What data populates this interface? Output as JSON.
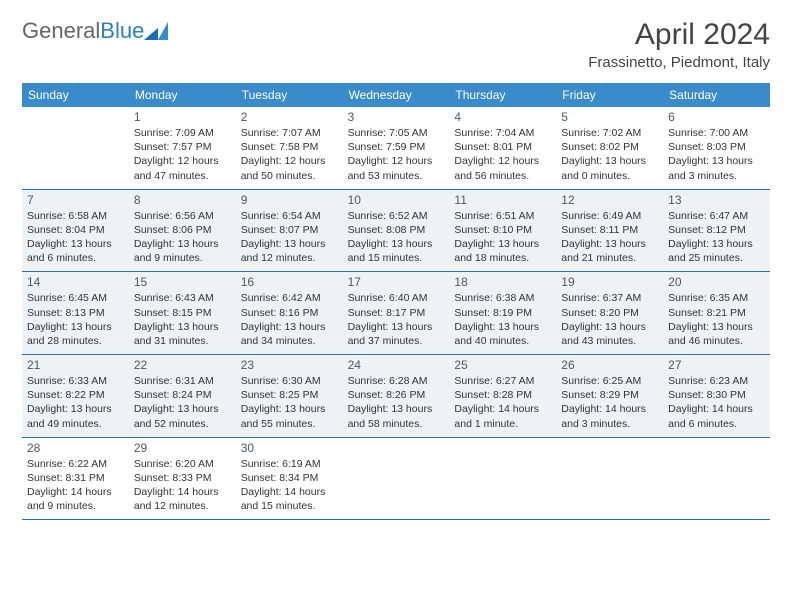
{
  "brand": {
    "name_gray": "General",
    "name_blue": "Blue"
  },
  "title": {
    "month": "April 2024",
    "location": "Frassinetto, Piedmont, Italy"
  },
  "colors": {
    "header_bg": "#3a8bc9",
    "header_text": "#ffffff",
    "rule": "#2d6da8",
    "shaded": "#eef2f5",
    "text": "#333333",
    "daynum": "#4a5a6a"
  },
  "dayNames": [
    "Sunday",
    "Monday",
    "Tuesday",
    "Wednesday",
    "Thursday",
    "Friday",
    "Saturday"
  ],
  "weeks": [
    {
      "shaded": false,
      "cells": [
        {
          "blank": true
        },
        {
          "day": "1",
          "sunrise": "Sunrise: 7:09 AM",
          "sunset": "Sunset: 7:57 PM",
          "daylight": "Daylight: 12 hours and 47 minutes."
        },
        {
          "day": "2",
          "sunrise": "Sunrise: 7:07 AM",
          "sunset": "Sunset: 7:58 PM",
          "daylight": "Daylight: 12 hours and 50 minutes."
        },
        {
          "day": "3",
          "sunrise": "Sunrise: 7:05 AM",
          "sunset": "Sunset: 7:59 PM",
          "daylight": "Daylight: 12 hours and 53 minutes."
        },
        {
          "day": "4",
          "sunrise": "Sunrise: 7:04 AM",
          "sunset": "Sunset: 8:01 PM",
          "daylight": "Daylight: 12 hours and 56 minutes."
        },
        {
          "day": "5",
          "sunrise": "Sunrise: 7:02 AM",
          "sunset": "Sunset: 8:02 PM",
          "daylight": "Daylight: 13 hours and 0 minutes."
        },
        {
          "day": "6",
          "sunrise": "Sunrise: 7:00 AM",
          "sunset": "Sunset: 8:03 PM",
          "daylight": "Daylight: 13 hours and 3 minutes."
        }
      ]
    },
    {
      "shaded": true,
      "cells": [
        {
          "day": "7",
          "sunrise": "Sunrise: 6:58 AM",
          "sunset": "Sunset: 8:04 PM",
          "daylight": "Daylight: 13 hours and 6 minutes."
        },
        {
          "day": "8",
          "sunrise": "Sunrise: 6:56 AM",
          "sunset": "Sunset: 8:06 PM",
          "daylight": "Daylight: 13 hours and 9 minutes."
        },
        {
          "day": "9",
          "sunrise": "Sunrise: 6:54 AM",
          "sunset": "Sunset: 8:07 PM",
          "daylight": "Daylight: 13 hours and 12 minutes."
        },
        {
          "day": "10",
          "sunrise": "Sunrise: 6:52 AM",
          "sunset": "Sunset: 8:08 PM",
          "daylight": "Daylight: 13 hours and 15 minutes."
        },
        {
          "day": "11",
          "sunrise": "Sunrise: 6:51 AM",
          "sunset": "Sunset: 8:10 PM",
          "daylight": "Daylight: 13 hours and 18 minutes."
        },
        {
          "day": "12",
          "sunrise": "Sunrise: 6:49 AM",
          "sunset": "Sunset: 8:11 PM",
          "daylight": "Daylight: 13 hours and 21 minutes."
        },
        {
          "day": "13",
          "sunrise": "Sunrise: 6:47 AM",
          "sunset": "Sunset: 8:12 PM",
          "daylight": "Daylight: 13 hours and 25 minutes."
        }
      ]
    },
    {
      "shaded": true,
      "cells": [
        {
          "day": "14",
          "sunrise": "Sunrise: 6:45 AM",
          "sunset": "Sunset: 8:13 PM",
          "daylight": "Daylight: 13 hours and 28 minutes."
        },
        {
          "day": "15",
          "sunrise": "Sunrise: 6:43 AM",
          "sunset": "Sunset: 8:15 PM",
          "daylight": "Daylight: 13 hours and 31 minutes."
        },
        {
          "day": "16",
          "sunrise": "Sunrise: 6:42 AM",
          "sunset": "Sunset: 8:16 PM",
          "daylight": "Daylight: 13 hours and 34 minutes."
        },
        {
          "day": "17",
          "sunrise": "Sunrise: 6:40 AM",
          "sunset": "Sunset: 8:17 PM",
          "daylight": "Daylight: 13 hours and 37 minutes."
        },
        {
          "day": "18",
          "sunrise": "Sunrise: 6:38 AM",
          "sunset": "Sunset: 8:19 PM",
          "daylight": "Daylight: 13 hours and 40 minutes."
        },
        {
          "day": "19",
          "sunrise": "Sunrise: 6:37 AM",
          "sunset": "Sunset: 8:20 PM",
          "daylight": "Daylight: 13 hours and 43 minutes."
        },
        {
          "day": "20",
          "sunrise": "Sunrise: 6:35 AM",
          "sunset": "Sunset: 8:21 PM",
          "daylight": "Daylight: 13 hours and 46 minutes."
        }
      ]
    },
    {
      "shaded": true,
      "cells": [
        {
          "day": "21",
          "sunrise": "Sunrise: 6:33 AM",
          "sunset": "Sunset: 8:22 PM",
          "daylight": "Daylight: 13 hours and 49 minutes."
        },
        {
          "day": "22",
          "sunrise": "Sunrise: 6:31 AM",
          "sunset": "Sunset: 8:24 PM",
          "daylight": "Daylight: 13 hours and 52 minutes."
        },
        {
          "day": "23",
          "sunrise": "Sunrise: 6:30 AM",
          "sunset": "Sunset: 8:25 PM",
          "daylight": "Daylight: 13 hours and 55 minutes."
        },
        {
          "day": "24",
          "sunrise": "Sunrise: 6:28 AM",
          "sunset": "Sunset: 8:26 PM",
          "daylight": "Daylight: 13 hours and 58 minutes."
        },
        {
          "day": "25",
          "sunrise": "Sunrise: 6:27 AM",
          "sunset": "Sunset: 8:28 PM",
          "daylight": "Daylight: 14 hours and 1 minute."
        },
        {
          "day": "26",
          "sunrise": "Sunrise: 6:25 AM",
          "sunset": "Sunset: 8:29 PM",
          "daylight": "Daylight: 14 hours and 3 minutes."
        },
        {
          "day": "27",
          "sunrise": "Sunrise: 6:23 AM",
          "sunset": "Sunset: 8:30 PM",
          "daylight": "Daylight: 14 hours and 6 minutes."
        }
      ]
    },
    {
      "shaded": false,
      "cells": [
        {
          "day": "28",
          "sunrise": "Sunrise: 6:22 AM",
          "sunset": "Sunset: 8:31 PM",
          "daylight": "Daylight: 14 hours and 9 minutes."
        },
        {
          "day": "29",
          "sunrise": "Sunrise: 6:20 AM",
          "sunset": "Sunset: 8:33 PM",
          "daylight": "Daylight: 14 hours and 12 minutes."
        },
        {
          "day": "30",
          "sunrise": "Sunrise: 6:19 AM",
          "sunset": "Sunset: 8:34 PM",
          "daylight": "Daylight: 14 hours and 15 minutes."
        },
        {
          "blank": true
        },
        {
          "blank": true
        },
        {
          "blank": true
        },
        {
          "blank": true
        }
      ]
    }
  ]
}
